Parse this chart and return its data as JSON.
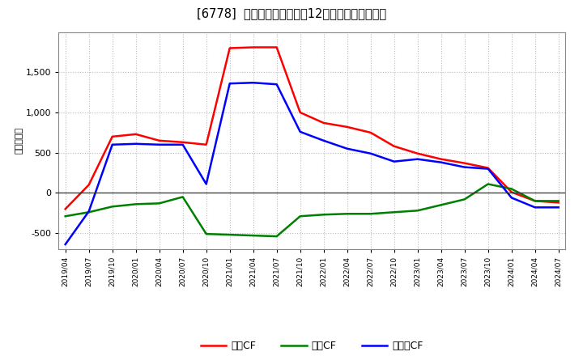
{
  "title": "[6778]  キャッシュフローの12か月移動合計の推移",
  "ylabel": "（百万円）",
  "background_color": "#ffffff",
  "grid_color": "#bbbbbb",
  "plot_bg_color": "#ffffff",
  "x_labels": [
    "2019/04",
    "2019/07",
    "2019/10",
    "2020/01",
    "2020/04",
    "2020/07",
    "2020/10",
    "2021/01",
    "2021/04",
    "2021/07",
    "2021/10",
    "2022/01",
    "2022/04",
    "2022/07",
    "2022/10",
    "2023/01",
    "2023/04",
    "2023/07",
    "2023/10",
    "2024/01",
    "2024/04",
    "2024/07"
  ],
  "operating_cf": [
    -200,
    100,
    700,
    730,
    650,
    630,
    600,
    1800,
    1810,
    1810,
    1000,
    870,
    820,
    750,
    580,
    490,
    420,
    370,
    310,
    10,
    -100,
    -120
  ],
  "investing_cf": [
    -290,
    -240,
    -170,
    -140,
    -130,
    -50,
    -510,
    -520,
    -530,
    -540,
    -290,
    -270,
    -260,
    -260,
    -240,
    -220,
    -150,
    -80,
    110,
    50,
    -100,
    -100
  ],
  "free_cf": [
    -640,
    -230,
    600,
    610,
    600,
    600,
    110,
    1360,
    1370,
    1350,
    760,
    650,
    550,
    490,
    390,
    420,
    380,
    320,
    300,
    -60,
    -180,
    -180
  ],
  "ylim": [
    -700,
    2000
  ],
  "yticks": [
    -500,
    0,
    500,
    1000,
    1500
  ],
  "operating_color": "#ff0000",
  "investing_color": "#008000",
  "free_color": "#0000ff",
  "line_width": 1.8
}
